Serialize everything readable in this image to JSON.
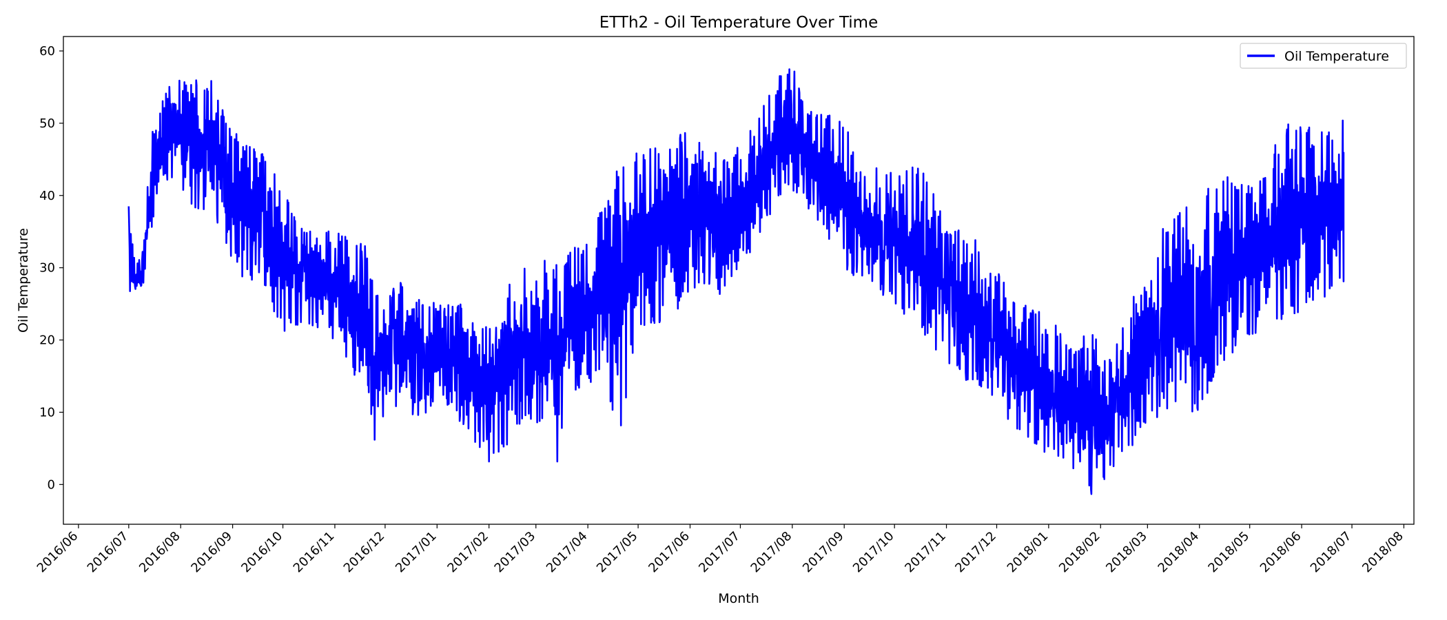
{
  "chart_data": {
    "type": "line",
    "title": "ETTh2 - Oil Temperature Over Time",
    "xlabel": "Month",
    "ylabel": "Oil Temperature",
    "xlim": [
      "2016-05-23",
      "2018-08-07"
    ],
    "ylim": [
      -5.5,
      62.0
    ],
    "y_ticks": [
      0,
      10,
      20,
      30,
      40,
      50,
      60
    ],
    "x_ticks": [
      "2016-06-01",
      "2016-07-01",
      "2016-08-01",
      "2016-09-01",
      "2016-10-01",
      "2016-11-01",
      "2016-12-01",
      "2017-01-01",
      "2017-02-01",
      "2017-03-01",
      "2017-04-01",
      "2017-05-01",
      "2017-06-01",
      "2017-07-01",
      "2017-08-01",
      "2017-09-01",
      "2017-10-01",
      "2017-11-01",
      "2017-12-01",
      "2018-01-01",
      "2018-02-01",
      "2018-03-01",
      "2018-04-01",
      "2018-05-01",
      "2018-06-01",
      "2018-07-01",
      "2018-08-01"
    ],
    "x_tick_labels": [
      "2016/06",
      "2016/07",
      "2016/08",
      "2016/09",
      "2016/10",
      "2016/11",
      "2016/12",
      "2017/01",
      "2017/02",
      "2017/03",
      "2017/04",
      "2017/05",
      "2017/06",
      "2017/07",
      "2017/08",
      "2017/09",
      "2017/10",
      "2017/11",
      "2017/12",
      "2018/01",
      "2018/02",
      "2018/03",
      "2018/04",
      "2018/05",
      "2018/06",
      "2018/07",
      "2018/08"
    ],
    "grid": false,
    "legend": {
      "position": "top-right",
      "entries": [
        "Oil Temperature"
      ]
    },
    "series": [
      {
        "name": "Oil Temperature",
        "color": "#0000ff",
        "envelope": {
          "dates": [
            "2016-07-01",
            "2016-07-05",
            "2016-07-10",
            "2016-07-15",
            "2016-07-20",
            "2016-07-25",
            "2016-08-01",
            "2016-08-10",
            "2016-08-20",
            "2016-09-01",
            "2016-09-10",
            "2016-09-20",
            "2016-10-01",
            "2016-10-10",
            "2016-10-20",
            "2016-11-01",
            "2016-11-10",
            "2016-11-20",
            "2016-11-25",
            "2016-12-01",
            "2016-12-10",
            "2016-12-20",
            "2017-01-01",
            "2017-01-10",
            "2017-01-20",
            "2017-02-01",
            "2017-02-10",
            "2017-02-20",
            "2017-03-01",
            "2017-03-10",
            "2017-03-13",
            "2017-03-20",
            "2017-04-01",
            "2017-04-10",
            "2017-04-20",
            "2017-05-01",
            "2017-05-10",
            "2017-05-20",
            "2017-06-01",
            "2017-06-10",
            "2017-06-20",
            "2017-07-01",
            "2017-07-10",
            "2017-07-20",
            "2017-07-27",
            "2017-08-01",
            "2017-08-10",
            "2017-08-20",
            "2017-09-01",
            "2017-09-10",
            "2017-09-20",
            "2017-10-01",
            "2017-10-10",
            "2017-10-20",
            "2017-11-01",
            "2017-11-10",
            "2017-11-20",
            "2017-12-01",
            "2017-12-10",
            "2017-12-20",
            "2018-01-01",
            "2018-01-10",
            "2018-01-20",
            "2018-01-28",
            "2018-02-01",
            "2018-02-10",
            "2018-02-20",
            "2018-03-01",
            "2018-03-10",
            "2018-03-20",
            "2018-04-01",
            "2018-04-10",
            "2018-04-20",
            "2018-05-01",
            "2018-05-10",
            "2018-05-20",
            "2018-06-01",
            "2018-06-10",
            "2018-06-20",
            "2018-06-26"
          ],
          "low": [
            26,
            25.5,
            28,
            36,
            40,
            42,
            41,
            38,
            38,
            30,
            28,
            27,
            21,
            22,
            22,
            20,
            15,
            15,
            4.5,
            9,
            11,
            8,
            12,
            10,
            7,
            3,
            5,
            8,
            8,
            8,
            0,
            12,
            13,
            13,
            6,
            22,
            22,
            23,
            26,
            27,
            26,
            30,
            33,
            38,
            40,
            40,
            38,
            34,
            30,
            28,
            27,
            25,
            22,
            20,
            17,
            15,
            13,
            12,
            8,
            6,
            4,
            3,
            1,
            -2.7,
            -1,
            3,
            4,
            8,
            10,
            10,
            10,
            15,
            18,
            20,
            22,
            22,
            24,
            25,
            26,
            28
          ],
          "high": [
            38.5,
            30,
            34,
            50,
            52,
            58,
            57.5,
            56,
            56,
            49,
            47,
            46,
            41,
            36,
            35,
            36,
            34,
            33,
            26,
            27,
            28,
            26,
            25,
            25,
            25,
            22,
            30,
            30,
            31,
            31,
            31,
            32,
            36,
            38,
            46,
            46,
            47,
            48,
            50,
            47,
            46,
            47,
            50,
            55,
            58,
            58,
            52,
            51,
            52,
            44,
            44,
            43,
            44,
            45,
            36,
            35,
            34,
            30,
            26,
            25,
            24,
            20,
            19,
            27,
            16,
            20,
            26,
            28,
            36,
            38,
            40,
            42,
            43,
            42,
            43,
            50,
            50,
            50,
            50,
            50.5
          ],
          "start_value": 38.5,
          "end_value": 46
        }
      }
    ]
  }
}
